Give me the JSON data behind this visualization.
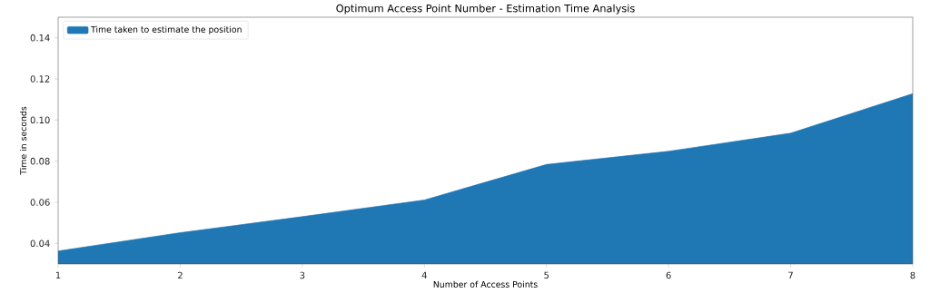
{
  "chart_data": {
    "type": "area",
    "title": "Optimum Access Point Number - Estimation Time Analysis",
    "xlabel": "Number of Access Points",
    "ylabel": "Time in seconds",
    "x": [
      1,
      2,
      3,
      4,
      5,
      6,
      7,
      8
    ],
    "series": [
      {
        "name": "Time taken to estimate the position",
        "color": "#1f77b4",
        "values": [
          0.0363,
          0.0452,
          0.053,
          0.0611,
          0.0784,
          0.0848,
          0.0936,
          0.1128
        ]
      }
    ],
    "xlim": [
      1,
      8
    ],
    "ylim": [
      0.03,
      0.15
    ],
    "xticks": [
      1,
      2,
      3,
      4,
      5,
      6,
      7,
      8
    ],
    "yticks": [
      0.04,
      0.06,
      0.08,
      {
        "value": 0.1,
        "label": "0.10"
      },
      0.12,
      0.14
    ],
    "legend": "top left"
  }
}
